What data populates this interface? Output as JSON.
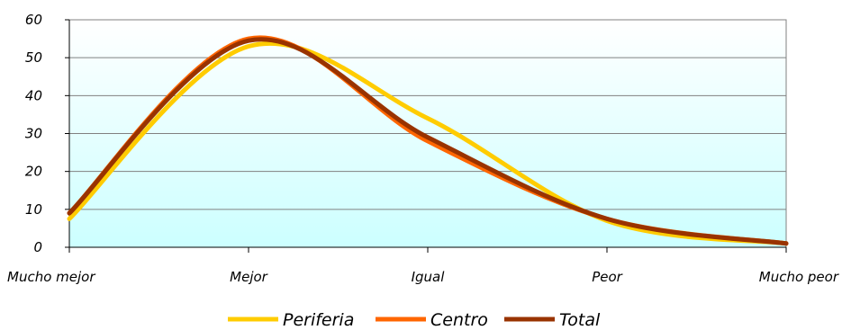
{
  "chart_data": {
    "type": "line",
    "title": "",
    "xlabel": "",
    "ylabel": "",
    "categories": [
      "Mucho mejor",
      "Mejor",
      "Igual",
      "Peor",
      "Mucho peor"
    ],
    "ylim": [
      0,
      60
    ],
    "yticks": [
      0,
      10,
      20,
      30,
      40,
      50,
      60
    ],
    "grid": true,
    "legend_position": "bottom",
    "series": [
      {
        "name": "Periferia",
        "color": "#FFCC00",
        "values": [
          7.5,
          53,
          34,
          7,
          1
        ]
      },
      {
        "name": "Centro",
        "color": "#FF6600",
        "values": [
          9,
          55,
          28,
          7.5,
          1
        ]
      },
      {
        "name": "Total",
        "color": "#993300",
        "values": [
          9,
          54.5,
          29,
          7.5,
          1
        ]
      }
    ],
    "background_gradient": [
      "#ffffff",
      "#ccffff"
    ]
  }
}
